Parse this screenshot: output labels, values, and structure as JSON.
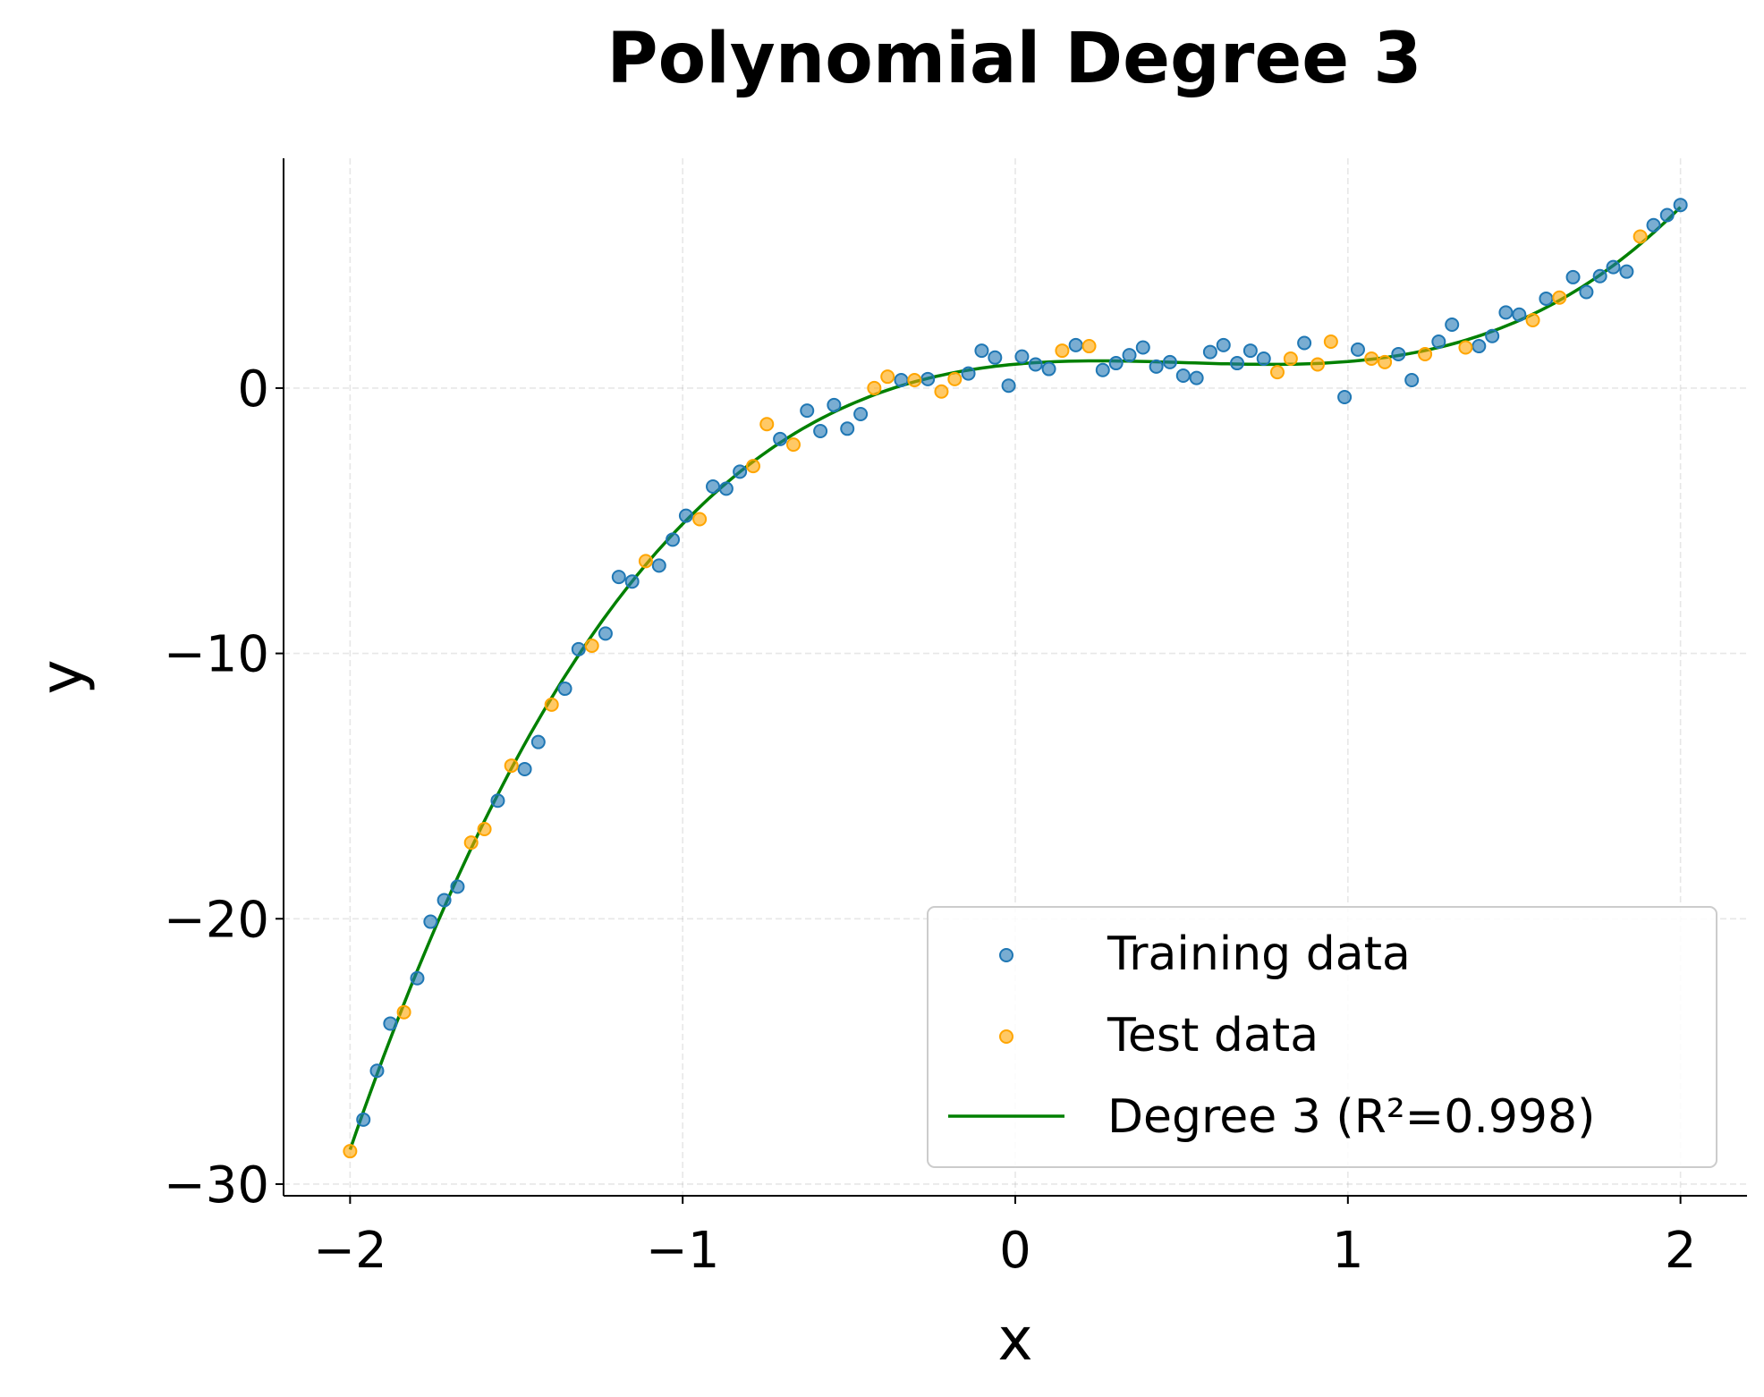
{
  "chart_data": {
    "type": "scatter",
    "title": "Polynomial Degree 3",
    "xlabel": "x",
    "ylabel": "y",
    "xlim": [
      -2.2,
      2.2
    ],
    "ylim": [
      -30.44,
      8.66
    ],
    "xticks": [
      -2,
      -1,
      0,
      1,
      2
    ],
    "xtick_labels": [
      "−2",
      "−1",
      "0",
      "1",
      "2"
    ],
    "yticks": [
      0,
      -10,
      -20,
      -30
    ],
    "ytick_labels": [
      "0",
      "−10",
      "−20",
      "−30"
    ],
    "grid": true,
    "legend_position": "lower-right",
    "colors": {
      "training": "#1f77b4",
      "test": "#ffa500",
      "fit": "#008000"
    },
    "series": [
      {
        "name": "Training data",
        "kind": "scatter",
        "points": [
          [
            -1.96,
            -27.57
          ],
          [
            -1.919,
            -25.73
          ],
          [
            -1.879,
            -23.95
          ],
          [
            -1.798,
            -22.24
          ],
          [
            -1.758,
            -20.11
          ],
          [
            -1.717,
            -19.3
          ],
          [
            -1.677,
            -18.79
          ],
          [
            -1.556,
            -15.55
          ],
          [
            -1.475,
            -14.36
          ],
          [
            -1.434,
            -13.34
          ],
          [
            -1.354,
            -11.33
          ],
          [
            -1.313,
            -9.84
          ],
          [
            -1.232,
            -9.25
          ],
          [
            -1.192,
            -7.12
          ],
          [
            -1.152,
            -7.29
          ],
          [
            -1.071,
            -6.69
          ],
          [
            -1.03,
            -5.71
          ],
          [
            -0.99,
            -4.81
          ],
          [
            -0.909,
            -3.71
          ],
          [
            -0.869,
            -3.79
          ],
          [
            -0.828,
            -3.15
          ],
          [
            -0.707,
            -1.92
          ],
          [
            -0.626,
            -0.85
          ],
          [
            -0.586,
            -1.62
          ],
          [
            -0.545,
            -0.64
          ],
          [
            -0.505,
            -1.53
          ],
          [
            -0.465,
            -0.98
          ],
          [
            -0.343,
            0.3
          ],
          [
            -0.263,
            0.34
          ],
          [
            -0.141,
            0.55
          ],
          [
            -0.101,
            1.41
          ],
          [
            -0.061,
            1.15
          ],
          [
            -0.02,
            0.09
          ],
          [
            0.02,
            1.19
          ],
          [
            0.061,
            0.89
          ],
          [
            0.101,
            0.72
          ],
          [
            0.182,
            1.62
          ],
          [
            0.263,
            0.68
          ],
          [
            0.303,
            0.94
          ],
          [
            0.343,
            1.24
          ],
          [
            0.384,
            1.53
          ],
          [
            0.424,
            0.81
          ],
          [
            0.465,
            0.98
          ],
          [
            0.505,
            0.47
          ],
          [
            0.545,
            0.38
          ],
          [
            0.586,
            1.36
          ],
          [
            0.626,
            1.62
          ],
          [
            0.667,
            0.94
          ],
          [
            0.707,
            1.41
          ],
          [
            0.747,
            1.11
          ],
          [
            0.869,
            1.7
          ],
          [
            0.99,
            -0.34
          ],
          [
            1.03,
            1.45
          ],
          [
            1.152,
            1.28
          ],
          [
            1.192,
            0.3
          ],
          [
            1.273,
            1.75
          ],
          [
            1.313,
            2.39
          ],
          [
            1.394,
            1.58
          ],
          [
            1.434,
            1.96
          ],
          [
            1.475,
            2.85
          ],
          [
            1.515,
            2.77
          ],
          [
            1.596,
            3.37
          ],
          [
            1.677,
            4.18
          ],
          [
            1.717,
            3.62
          ],
          [
            1.758,
            4.22
          ],
          [
            1.798,
            4.56
          ],
          [
            1.838,
            4.39
          ],
          [
            1.919,
            6.14
          ],
          [
            1.96,
            6.52
          ],
          [
            2.0,
            6.9
          ]
        ]
      },
      {
        "name": "Test data",
        "kind": "scatter",
        "points": [
          [
            -2.0,
            -28.76
          ],
          [
            -1.838,
            -23.52
          ],
          [
            -1.636,
            -17.13
          ],
          [
            -1.596,
            -16.62
          ],
          [
            -1.515,
            -14.23
          ],
          [
            -1.394,
            -11.93
          ],
          [
            -1.273,
            -9.71
          ],
          [
            -1.111,
            -6.52
          ],
          [
            -0.949,
            -4.94
          ],
          [
            -0.788,
            -2.94
          ],
          [
            -0.747,
            -1.36
          ],
          [
            -0.667,
            -2.13
          ],
          [
            -0.424,
            0.0
          ],
          [
            -0.384,
            0.43
          ],
          [
            -0.303,
            0.3
          ],
          [
            -0.222,
            -0.13
          ],
          [
            -0.182,
            0.34
          ],
          [
            0.141,
            1.41
          ],
          [
            0.222,
            1.58
          ],
          [
            0.788,
            0.6
          ],
          [
            0.828,
            1.11
          ],
          [
            0.909,
            0.89
          ],
          [
            0.949,
            1.75
          ],
          [
            1.071,
            1.11
          ],
          [
            1.111,
            0.98
          ],
          [
            1.232,
            1.28
          ],
          [
            1.354,
            1.53
          ],
          [
            1.556,
            2.56
          ],
          [
            1.636,
            3.41
          ],
          [
            1.879,
            5.71
          ]
        ]
      },
      {
        "name": "Degree 3 (R²=0.998)",
        "kind": "line",
        "x_range": [
          -2,
          2
        ],
        "coefficients_high_to_low": [
          1.94,
          -2.96,
          1.12,
          0.9
        ]
      }
    ]
  }
}
